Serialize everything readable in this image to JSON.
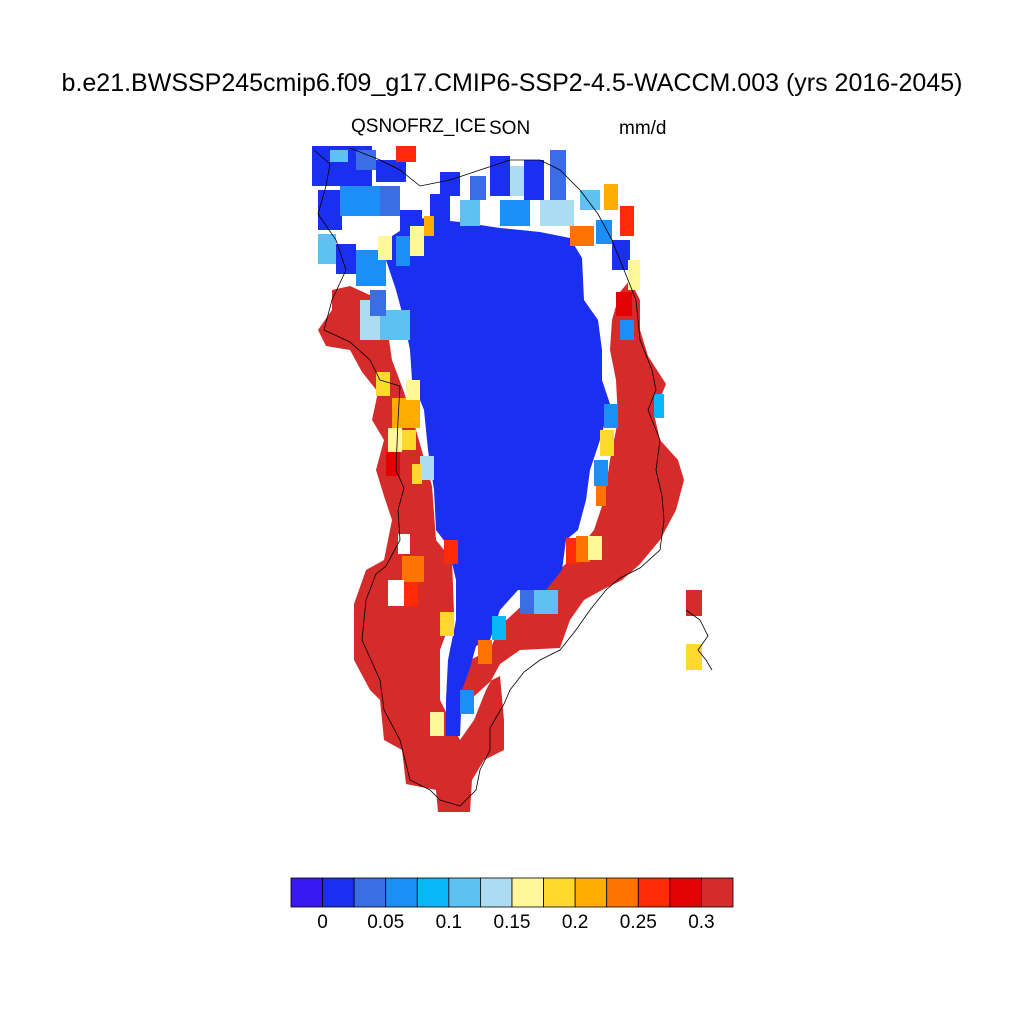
{
  "title": "b.e21.BWSSP245cmip6.f09_g17.CMIP6-SSP2-4.5-WACCM.003 (yrs 2016-2045)",
  "variable": "QSNOFRZ_ICE",
  "season": "SON",
  "units": "mm/d",
  "colorbar": {
    "colors": [
      "#3a18f4",
      "#1b2ff0",
      "#3b6ee6",
      "#1c8ff6",
      "#08b7f7",
      "#5ec1f2",
      "#acdcf1",
      "#fff799",
      "#ffd92e",
      "#ffac00",
      "#ff7400",
      "#ff2a08",
      "#e30204",
      "#d62b2b"
    ],
    "tick_labels": [
      "0",
      "0.05",
      "0.1",
      "0.15",
      "0.2",
      "0.25",
      "0.3"
    ]
  },
  "map_field": {
    "description_free": true,
    "interior_value_color": "#1b2ff0",
    "margin_value_color": "#d62b2b"
  }
}
